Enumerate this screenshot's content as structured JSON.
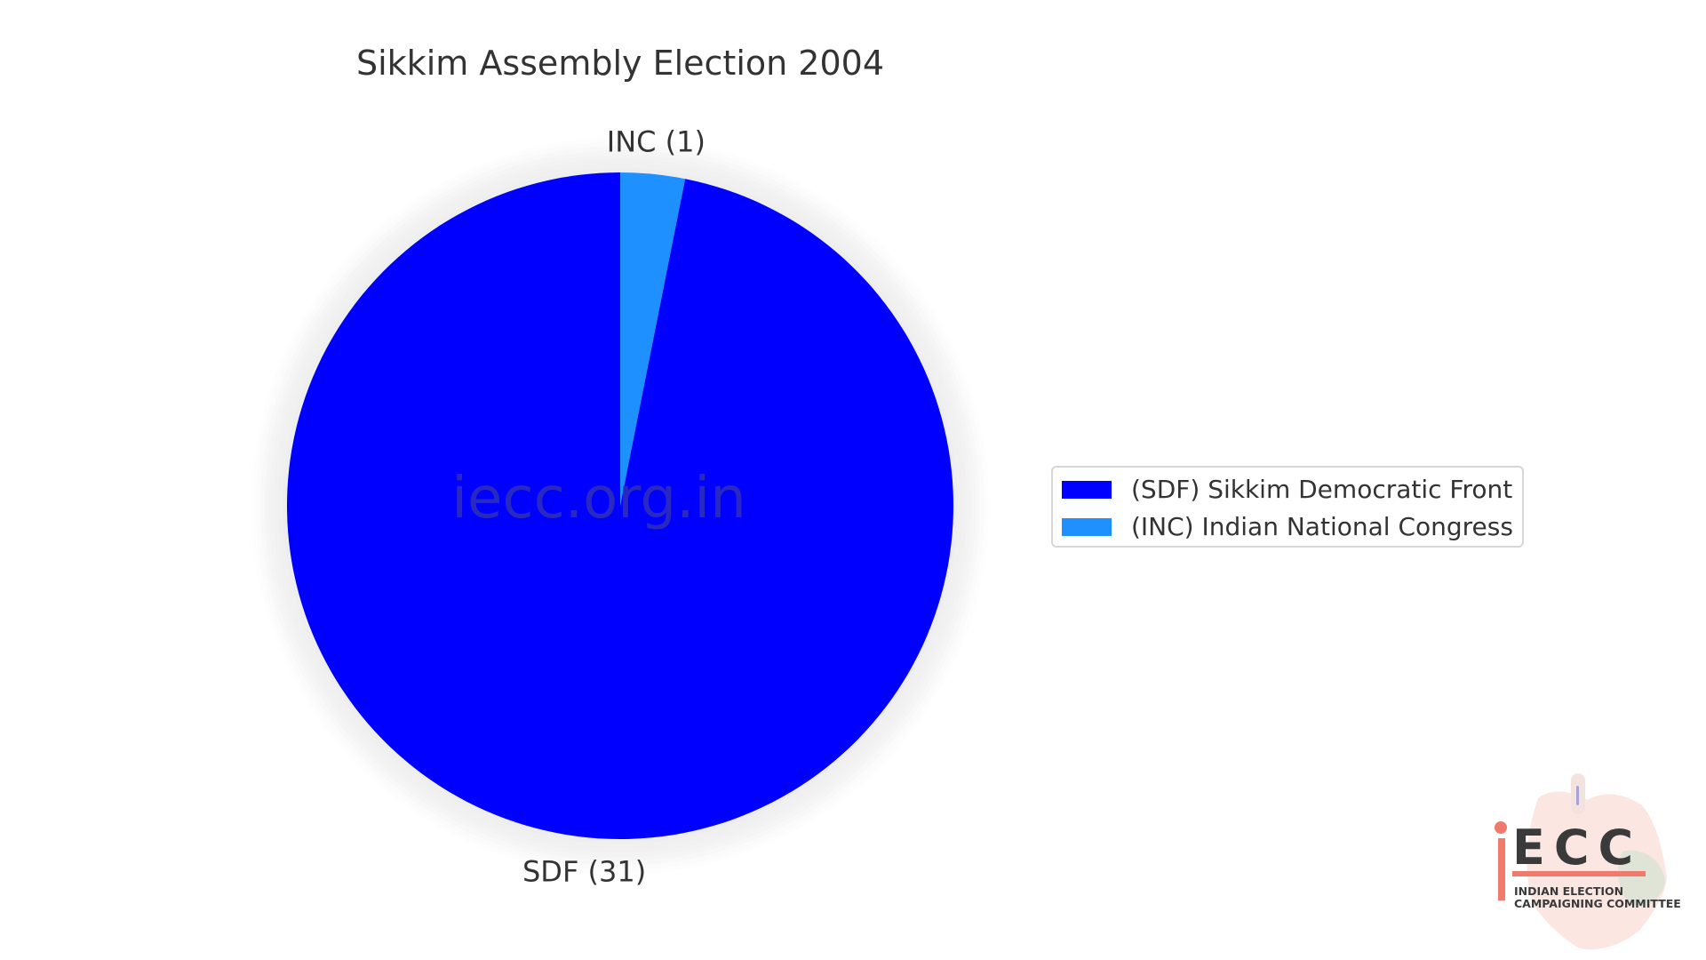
{
  "chart_data": {
    "type": "pie",
    "title": "Sikkim Assembly Election 2004",
    "slices": [
      {
        "label": "SDF (31)",
        "party": "SDF",
        "value": 31,
        "color": "#0000ff"
      },
      {
        "label": "INC (1)",
        "party": "INC",
        "value": 1,
        "color": "#1e90ff"
      }
    ],
    "legend": {
      "placement": "right",
      "entries": [
        {
          "label": "(SDF) Sikkim Democratic Front",
          "color": "#0000ff"
        },
        {
          "label": "(INC) Indian National Congress",
          "color": "#1e90ff"
        }
      ]
    },
    "start_angle": "top",
    "direction": "clockwise"
  },
  "watermark": "iecc.org.in",
  "logo": {
    "letters": "ECC",
    "tagline_line1": "INDIAN ELECTION",
    "tagline_line2": "CAMPAIGNING COMMITTEE",
    "accent": "#f07a6e"
  },
  "colors": {
    "text": "#333333",
    "shadow": "#ebebeb"
  }
}
